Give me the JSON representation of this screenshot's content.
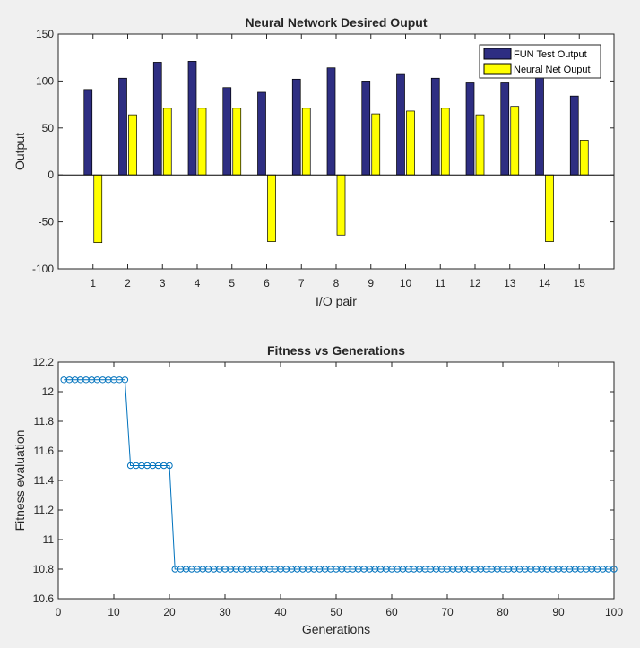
{
  "chart_data": [
    {
      "type": "bar",
      "title": "Neural Network Desired Ouput",
      "xlabel": "I/O pair",
      "ylabel": "Output",
      "ylim": [
        -100,
        150
      ],
      "yticks": [
        -100,
        -50,
        0,
        50,
        100,
        150
      ],
      "categories": [
        "1",
        "2",
        "3",
        "4",
        "5",
        "6",
        "7",
        "8",
        "9",
        "10",
        "11",
        "12",
        "13",
        "14",
        "15"
      ],
      "legend_position": "top-right",
      "series": [
        {
          "name": "FUN Test Output",
          "color": "#2e2e82",
          "values": [
            91,
            103,
            120,
            121,
            93,
            88,
            102,
            114,
            100,
            107,
            103,
            98,
            98,
            106,
            84
          ]
        },
        {
          "name": "Neural Net Ouput",
          "color": "#ffff00",
          "values": [
            -72,
            64,
            71,
            71,
            71,
            -71,
            71,
            -64,
            65,
            68,
            71,
            64,
            73,
            -71,
            37
          ]
        }
      ]
    },
    {
      "type": "line",
      "title": "Fitness vs Generations",
      "xlabel": "Generations",
      "ylabel": "Fitness evaluation",
      "xlim": [
        0,
        100
      ],
      "ylim": [
        10.6,
        12.2
      ],
      "xticks": [
        0,
        10,
        20,
        30,
        40,
        50,
        60,
        70,
        80,
        90,
        100
      ],
      "yticks": [
        10.6,
        10.8,
        11,
        11.2,
        11.4,
        11.6,
        11.8,
        12,
        12.2
      ],
      "marker": "circle",
      "series": [
        {
          "color": "#0072bd",
          "x": [
            1,
            2,
            3,
            4,
            5,
            6,
            7,
            8,
            9,
            10,
            11,
            12,
            13,
            14,
            15,
            16,
            17,
            18,
            19,
            20,
            21,
            22,
            23,
            24,
            25,
            26,
            27,
            28,
            29,
            30,
            31,
            32,
            33,
            34,
            35,
            36,
            37,
            38,
            39,
            40,
            41,
            42,
            43,
            44,
            45,
            46,
            47,
            48,
            49,
            50,
            51,
            52,
            53,
            54,
            55,
            56,
            57,
            58,
            59,
            60,
            61,
            62,
            63,
            64,
            65,
            66,
            67,
            68,
            69,
            70,
            71,
            72,
            73,
            74,
            75,
            76,
            77,
            78,
            79,
            80,
            81,
            82,
            83,
            84,
            85,
            86,
            87,
            88,
            89,
            90,
            91,
            92,
            93,
            94,
            95,
            96,
            97,
            98,
            99,
            100
          ],
          "y": [
            12.08,
            12.08,
            12.08,
            12.08,
            12.08,
            12.08,
            12.08,
            12.08,
            12.08,
            12.08,
            12.08,
            12.08,
            11.5,
            11.5,
            11.5,
            11.5,
            11.5,
            11.5,
            11.5,
            11.5,
            10.8,
            10.8,
            10.8,
            10.8,
            10.8,
            10.8,
            10.8,
            10.8,
            10.8,
            10.8,
            10.8,
            10.8,
            10.8,
            10.8,
            10.8,
            10.8,
            10.8,
            10.8,
            10.8,
            10.8,
            10.8,
            10.8,
            10.8,
            10.8,
            10.8,
            10.8,
            10.8,
            10.8,
            10.8,
            10.8,
            10.8,
            10.8,
            10.8,
            10.8,
            10.8,
            10.8,
            10.8,
            10.8,
            10.8,
            10.8,
            10.8,
            10.8,
            10.8,
            10.8,
            10.8,
            10.8,
            10.8,
            10.8,
            10.8,
            10.8,
            10.8,
            10.8,
            10.8,
            10.8,
            10.8,
            10.8,
            10.8,
            10.8,
            10.8,
            10.8,
            10.8,
            10.8,
            10.8,
            10.8,
            10.8,
            10.8,
            10.8,
            10.8,
            10.8,
            10.8,
            10.8,
            10.8,
            10.8,
            10.8,
            10.8,
            10.8,
            10.8,
            10.8,
            10.8,
            10.8
          ]
        }
      ]
    }
  ]
}
